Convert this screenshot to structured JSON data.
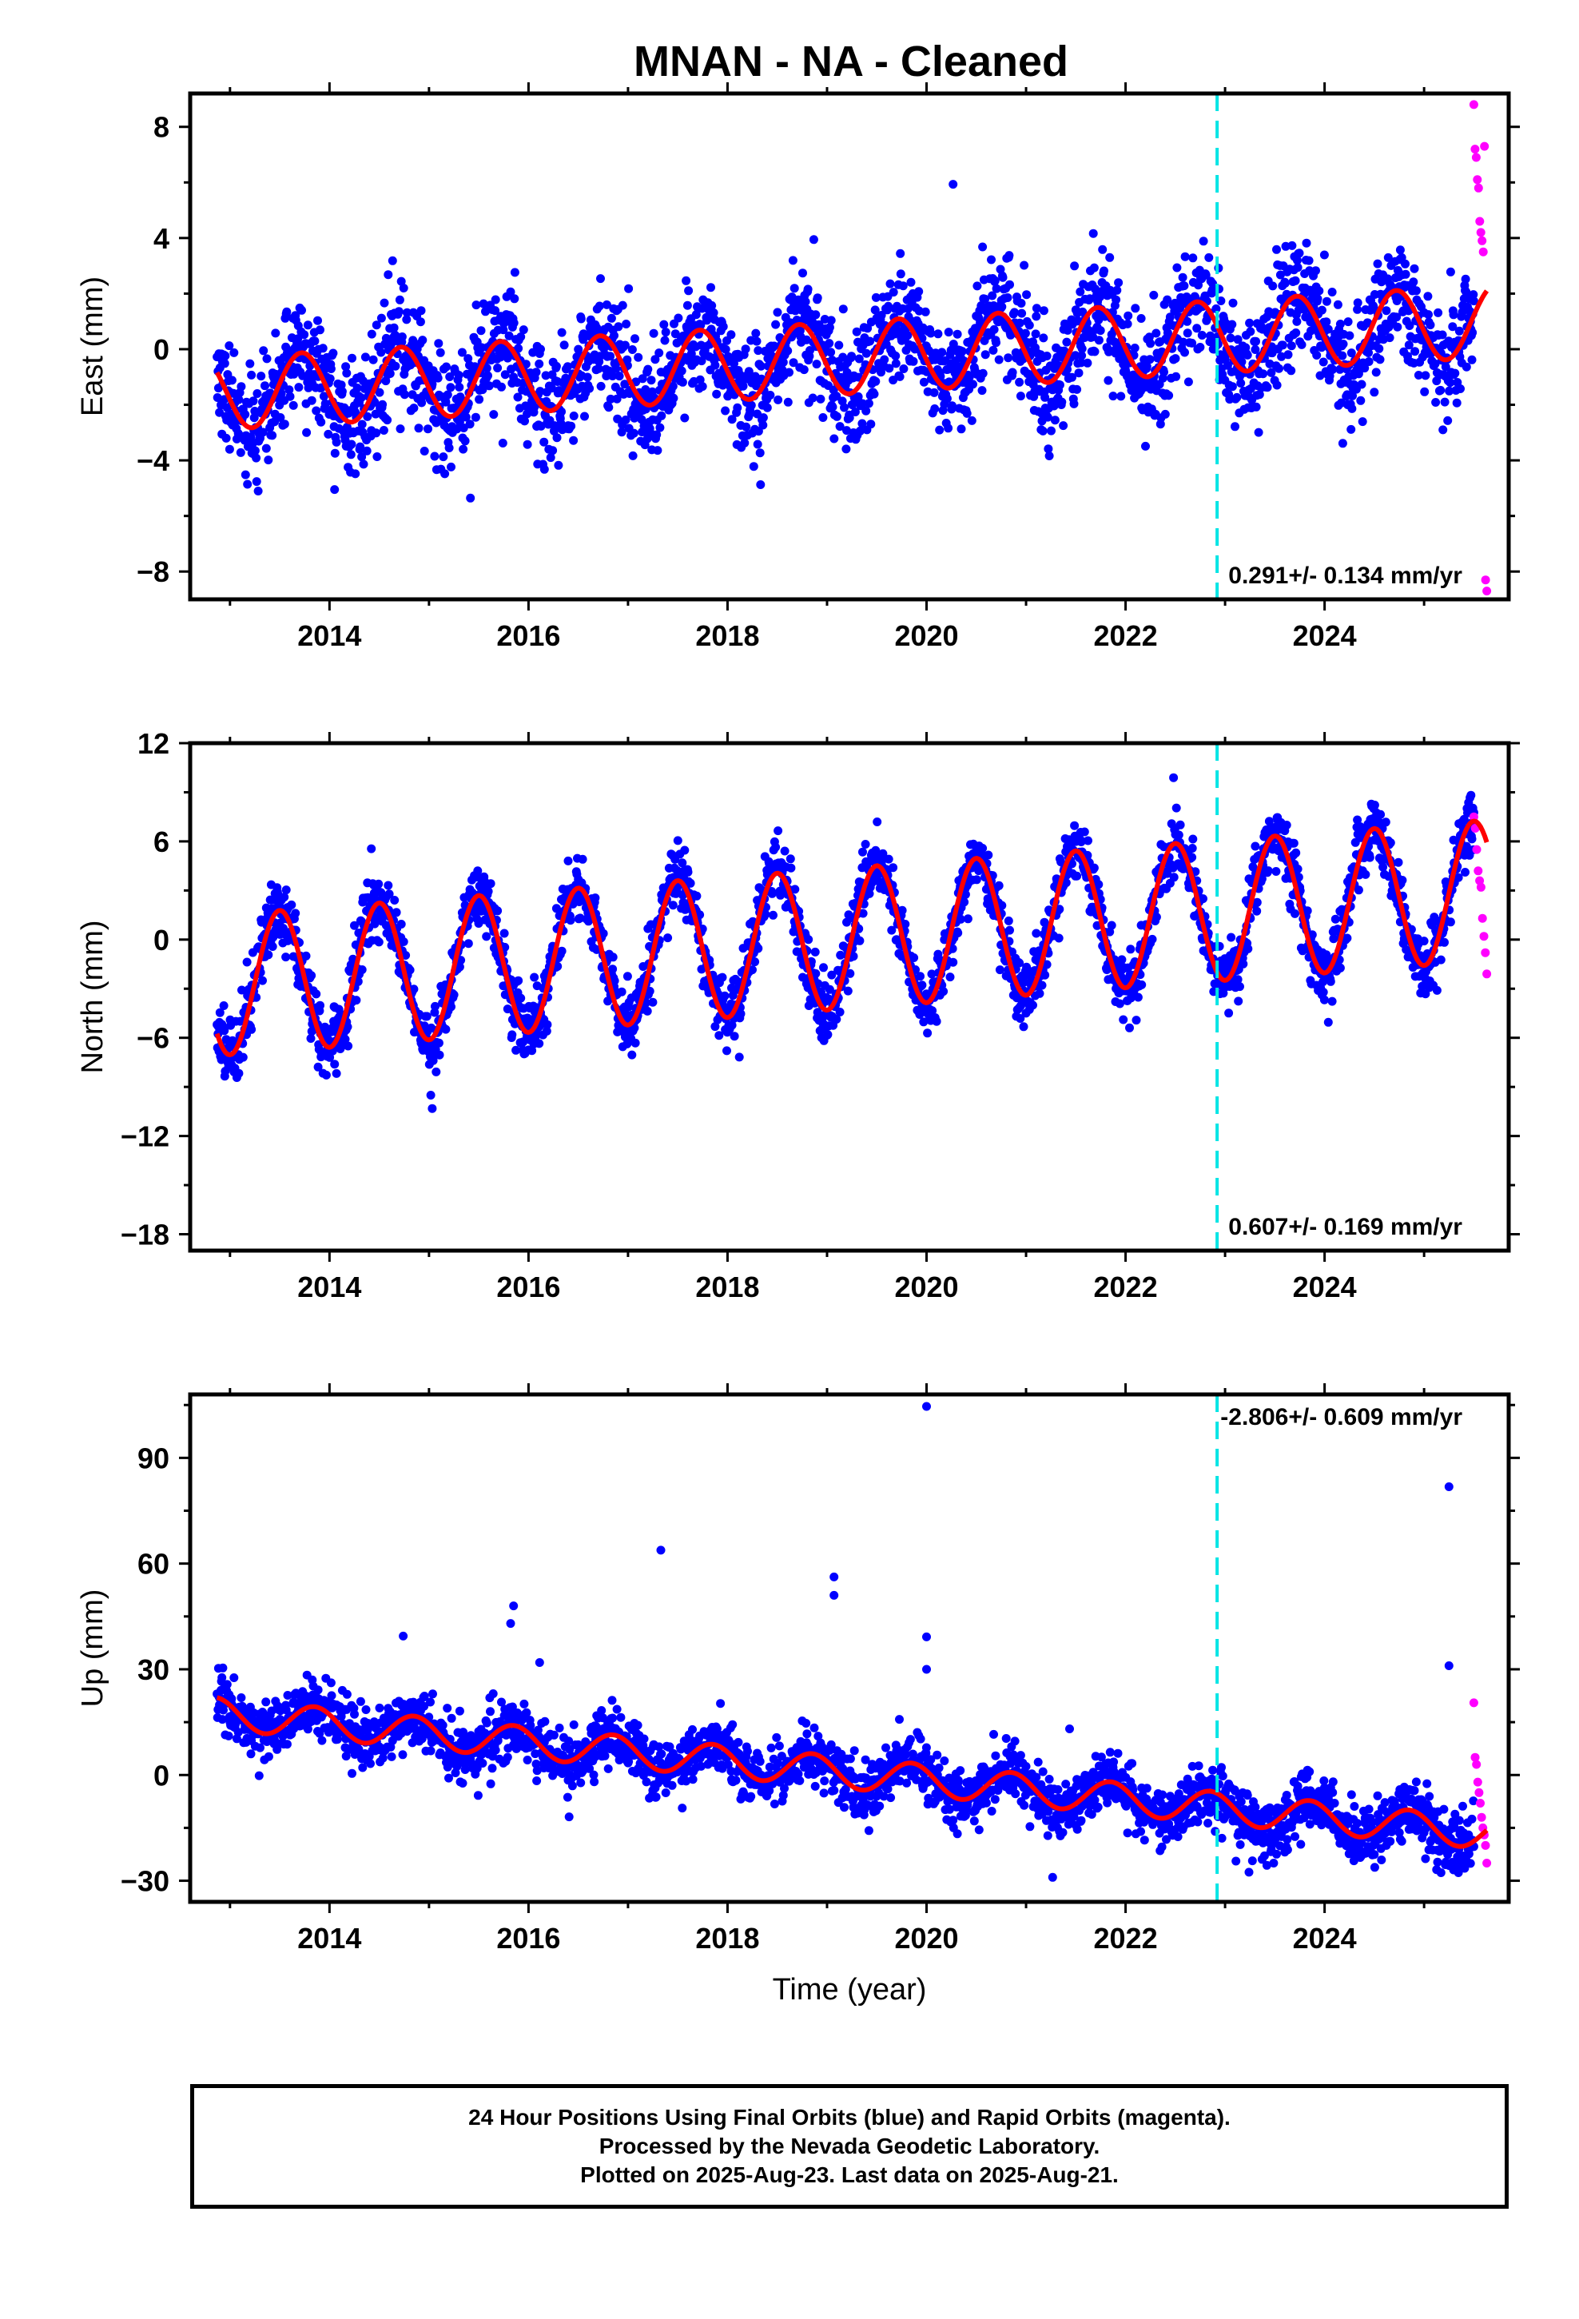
{
  "title": "MNAN  - NA - Cleaned",
  "footer": {
    "line1": "24 Hour Positions Using Final Orbits (blue) and Rapid Orbits (magenta).",
    "line2": "Processed by the Nevada Geodetic Laboratory.",
    "line3": "Plotted on 2025-Aug-23. Last data on 2025-Aug-21."
  },
  "colors": {
    "final_orbits": "#0000ff",
    "rapid_orbits": "#ff00ff",
    "model_fit": "#ff0000",
    "event_line": "#00e5e5"
  },
  "chart_data": [
    {
      "type": "scatter",
      "ylabel": "East (mm)",
      "xlim": [
        2012.6,
        2025.85
      ],
      "ylim": [
        -9,
        9.2
      ],
      "x_ticks": [
        2014,
        2016,
        2018,
        2020,
        2022,
        2024
      ],
      "y_ticks": [
        -8,
        -4,
        0,
        4,
        8
      ],
      "rate_label": "0.291+/- 0.134 mm/yr",
      "event_line_x": 2022.92,
      "series": [
        {
          "role": "final_orbits",
          "x_start": 2012.87,
          "x_end": 2025.5,
          "trend_start": -1.6,
          "trend_end": 0.9,
          "annual_amplitude": 1.3,
          "annual_peak": 2013.72,
          "noise_sd": 1.0
        },
        {
          "role": "rapid_orbits",
          "x_start": 2025.5,
          "x_end": 2025.63,
          "values": [
            8.8,
            7.2,
            6.9,
            6.1,
            5.8,
            4.6,
            4.2,
            3.9,
            3.5,
            7.3,
            -8.3,
            -8.7
          ]
        },
        {
          "role": "model_fit",
          "x_start": 2012.87,
          "x_end": 2025.63,
          "trend_start": -1.6,
          "trend_end": 1.0,
          "annual_amplitude": 1.3,
          "annual_peak": 2013.72
        }
      ]
    },
    {
      "type": "scatter",
      "ylabel": "North (mm)",
      "xlim": [
        2012.6,
        2025.85
      ],
      "ylim": [
        -19,
        12
      ],
      "x_ticks": [
        2014,
        2016,
        2018,
        2020,
        2022,
        2024
      ],
      "y_ticks": [
        -18,
        -12,
        -6,
        0,
        6,
        12
      ],
      "rate_label": "0.607+/- 0.169 mm/yr",
      "event_line_x": 2022.92,
      "series": [
        {
          "role": "final_orbits",
          "x_start": 2012.87,
          "x_end": 2025.5,
          "trend_start": -2.8,
          "trend_end": 3.0,
          "annual_amplitude": 4.3,
          "annual_peak": 2013.5,
          "noise_sd": 1.0
        },
        {
          "role": "rapid_orbits",
          "x_start": 2025.5,
          "x_end": 2025.63,
          "values": [
            7.5,
            6.8,
            5.5,
            4.2,
            3.6,
            3.2,
            1.3,
            0.2,
            -0.8,
            -2.1
          ]
        },
        {
          "role": "model_fit",
          "x_start": 2012.87,
          "x_end": 2025.63,
          "trend_start": -2.8,
          "trend_end": 3.0,
          "annual_amplitude": 4.3,
          "annual_peak": 2013.5
        }
      ]
    },
    {
      "type": "scatter",
      "xlabel": "Time (year)",
      "ylabel": "Up (mm)",
      "xlim": [
        2012.6,
        2025.85
      ],
      "ylim": [
        -36,
        108
      ],
      "x_ticks": [
        2014,
        2016,
        2018,
        2020,
        2022,
        2024
      ],
      "y_ticks": [
        -30,
        0,
        30,
        60,
        90
      ],
      "rate_label": "-2.806+/- 0.609 mm/yr",
      "event_line_x": 2022.92,
      "series": [
        {
          "role": "final_orbits",
          "x_start": 2012.87,
          "x_end": 2025.5,
          "trend_start": 17.5,
          "trend_end": -16.5,
          "annual_amplitude": 4.5,
          "annual_peak": 2013.85,
          "noise_sd": 4.0
        },
        {
          "role": "rapid_orbits",
          "x_start": 2025.5,
          "x_end": 2025.63,
          "values": [
            20.5,
            5.0,
            3.0,
            -2.0,
            -5.0,
            -8.0,
            -12.0,
            -15.0,
            -17.0,
            -20.0,
            -25.0
          ]
        },
        {
          "role": "model_fit",
          "x_start": 2012.87,
          "x_end": 2025.63,
          "trend_start": 17.5,
          "trend_end": -16.5,
          "annual_amplitude": 4.5,
          "annual_peak": 2013.85
        },
        {
          "role": "outliers",
          "points": [
            [
              2019.07,
              56.2
            ],
            [
              2019.07,
              51.0
            ],
            [
              2020.0,
              104.6
            ],
            [
              2020.0,
              39.2
            ],
            [
              2020.0,
              30.0
            ],
            [
              2025.25,
              81.8
            ],
            [
              2025.25,
              31.0
            ],
            [
              2017.33,
              63.8
            ],
            [
              2015.85,
              48.0
            ],
            [
              2015.82,
              43.0
            ]
          ]
        }
      ]
    }
  ]
}
